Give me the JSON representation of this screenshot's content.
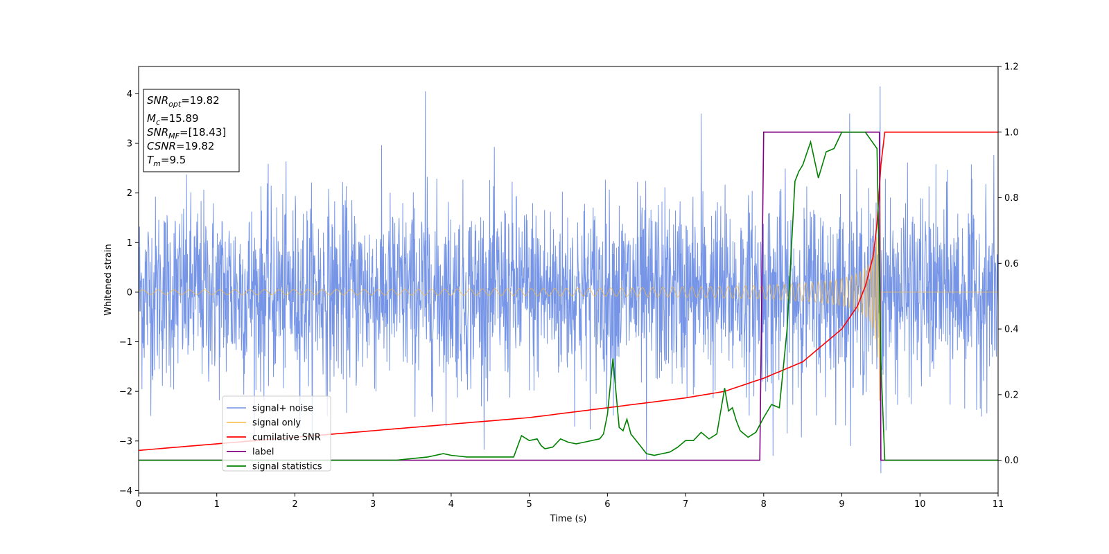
{
  "chart_data": {
    "type": "line",
    "xlabel": "Time (s)",
    "ylabel": "Whitened strain",
    "xlim": [
      0,
      11
    ],
    "ylim_left": [
      -4.05,
      4.55
    ],
    "ylim_right": [
      -0.1,
      1.2
    ],
    "x_ticks": [
      0,
      1,
      2,
      3,
      4,
      5,
      6,
      7,
      8,
      9,
      10,
      11
    ],
    "y_ticks_left": [
      -4,
      -3,
      -2,
      -1,
      0,
      1,
      2,
      3,
      4
    ],
    "y_ticks_right": [
      0.0,
      0.2,
      0.4,
      0.6,
      0.8,
      1.0,
      1.2
    ],
    "legend_position": "lower-left",
    "info_box": [
      {
        "base": "SNR",
        "sub": "opt",
        "value": "=19.82"
      },
      {
        "base": "M",
        "sub": "c",
        "value": "=15.89"
      },
      {
        "base": "SNR",
        "sub": "MF",
        "value": "=[18.43]"
      },
      {
        "base": "CSNR",
        "sub": "",
        "value": "=19.82"
      },
      {
        "base": "T",
        "sub": "m",
        "value": "=9.5"
      }
    ],
    "series": [
      {
        "name": "signal+ noise",
        "axis": "left",
        "color": "#6f8fe6",
        "description_type": "noise",
        "noise_std": 1.0,
        "spikes": [
          [
            3.67,
            4.05
          ],
          [
            9.49,
            4.15
          ],
          [
            9.1,
            3.6
          ],
          [
            7.2,
            3.6
          ],
          [
            9.5,
            -3.65
          ],
          [
            6.5,
            -3.4
          ],
          [
            8.12,
            -3.3
          ]
        ]
      },
      {
        "name": "signal only",
        "axis": "left",
        "color": "#f5b942",
        "description_type": "chirp",
        "merger_time": 9.5
      },
      {
        "name": "cumilative SNR",
        "axis": "right",
        "color": "#ff0000",
        "x": [
          0,
          1,
          2,
          3,
          4,
          5,
          6,
          7,
          7.5,
          8,
          8.5,
          9,
          9.2,
          9.3,
          9.4,
          9.45,
          9.5,
          9.55,
          11
        ],
        "y": [
          0.03,
          0.05,
          0.07,
          0.09,
          0.11,
          0.13,
          0.16,
          0.19,
          0.21,
          0.25,
          0.3,
          0.4,
          0.47,
          0.53,
          0.62,
          0.72,
          0.9,
          1.0,
          1.0
        ]
      },
      {
        "name": "label",
        "axis": "right",
        "color": "#800080",
        "x": [
          0,
          7.95,
          8.0,
          9.48,
          9.5,
          11
        ],
        "y": [
          0,
          0,
          1,
          1,
          0,
          0
        ]
      },
      {
        "name": "signal statistics",
        "axis": "right",
        "color": "#008000",
        "x": [
          0,
          0.4,
          1,
          2,
          2.5,
          3,
          3.3,
          3.5,
          3.7,
          3.8,
          3.9,
          4.0,
          4.2,
          4.4,
          4.6,
          4.8,
          4.9,
          5.0,
          5.1,
          5.15,
          5.2,
          5.3,
          5.4,
          5.5,
          5.6,
          5.7,
          5.8,
          5.9,
          5.95,
          6.0,
          6.07,
          6.15,
          6.2,
          6.25,
          6.3,
          6.4,
          6.5,
          6.6,
          6.7,
          6.8,
          6.9,
          7.0,
          7.1,
          7.2,
          7.3,
          7.4,
          7.5,
          7.55,
          7.6,
          7.65,
          7.7,
          7.8,
          7.9,
          8.0,
          8.1,
          8.2,
          8.3,
          8.4,
          8.45,
          8.5,
          8.6,
          8.7,
          8.8,
          8.9,
          9.0,
          9.1,
          9.3,
          9.45,
          9.5,
          9.55,
          9.6,
          11
        ],
        "y": [
          0.0,
          0.0,
          0.0,
          0.0,
          0.0,
          0.0,
          0.0,
          0.005,
          0.01,
          0.015,
          0.02,
          0.015,
          0.01,
          0.01,
          0.01,
          0.01,
          0.075,
          0.06,
          0.065,
          0.045,
          0.035,
          0.04,
          0.065,
          0.055,
          0.05,
          0.055,
          0.06,
          0.065,
          0.08,
          0.14,
          0.31,
          0.1,
          0.09,
          0.125,
          0.08,
          0.05,
          0.02,
          0.015,
          0.02,
          0.025,
          0.04,
          0.06,
          0.06,
          0.085,
          0.065,
          0.08,
          0.22,
          0.15,
          0.16,
          0.12,
          0.09,
          0.07,
          0.085,
          0.13,
          0.17,
          0.16,
          0.4,
          0.85,
          0.88,
          0.9,
          0.97,
          0.86,
          0.94,
          0.95,
          1.0,
          1.0,
          1.0,
          0.95,
          0.3,
          0.0,
          0.0,
          0.0
        ]
      }
    ]
  }
}
